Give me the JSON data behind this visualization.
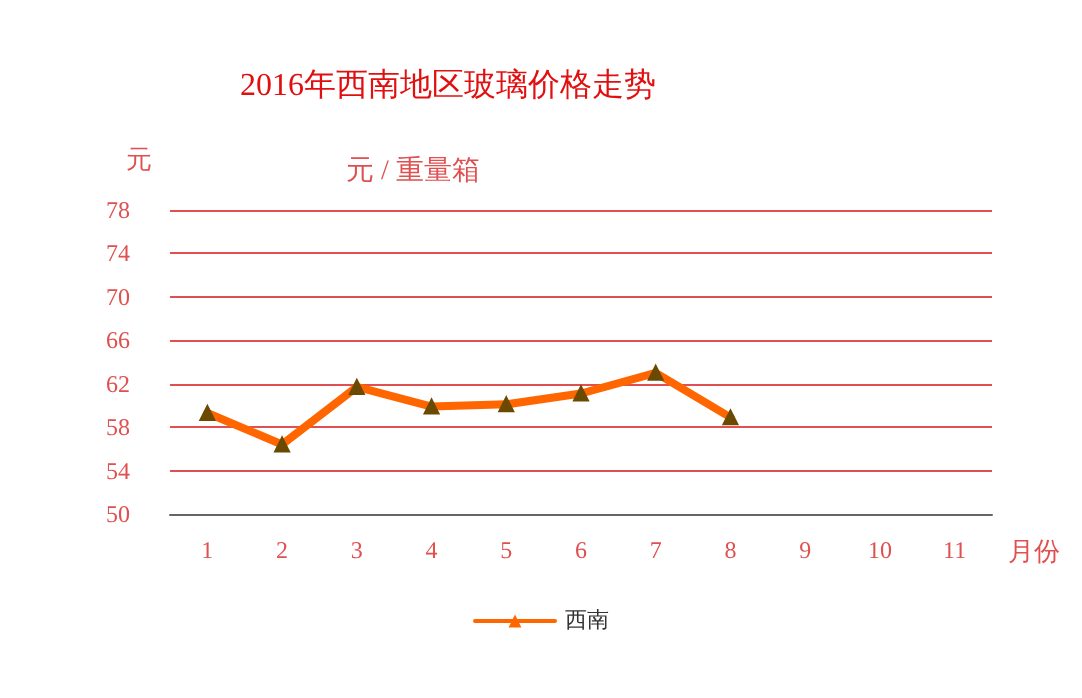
{
  "chart_data": {
    "type": "line",
    "title": "2016年西南地区玻璃价格走势",
    "subtitle": "元 / 重量箱",
    "ylabel": "元",
    "xlabel": "月份",
    "categories": [
      "1",
      "2",
      "3",
      "4",
      "5",
      "6",
      "7",
      "8",
      "9",
      "10",
      "11"
    ],
    "series": [
      {
        "name": "西南",
        "color": "#ff6600",
        "values": [
          59.3,
          56.4,
          61.7,
          59.9,
          60.1,
          61.1,
          63.0,
          58.9,
          null,
          null,
          null
        ]
      }
    ],
    "ylim": [
      50,
      78
    ],
    "yticks": [
      50,
      54,
      58,
      62,
      66,
      70,
      74,
      78
    ],
    "grid": "y",
    "legend": "bottom",
    "marker": "triangle",
    "line_style": "solid"
  }
}
